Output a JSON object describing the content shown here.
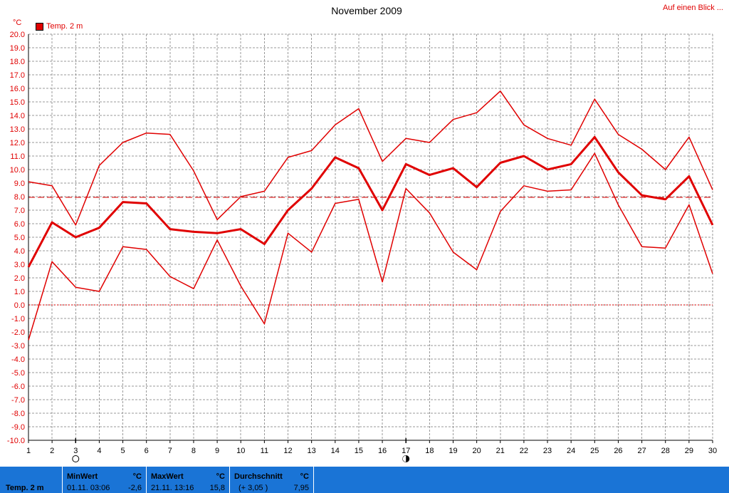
{
  "header": {
    "title": "November 2009",
    "link_label": "Auf einen Blick ...",
    "unit_label": "°C",
    "legend_label": "Temp. 2 m"
  },
  "colors": {
    "series": "#e00000",
    "grid": "#9a9a9a",
    "footer": "#1a74d6"
  },
  "chart_data": {
    "type": "line",
    "title": "November 2009",
    "ylabel": "°C",
    "x": [
      1,
      2,
      3,
      4,
      5,
      6,
      7,
      8,
      9,
      10,
      11,
      12,
      13,
      14,
      15,
      16,
      17,
      18,
      19,
      20,
      21,
      22,
      23,
      24,
      25,
      26,
      27,
      28,
      29,
      30
    ],
    "ylim": [
      -10,
      20
    ],
    "ytick_step": 1,
    "yticks": [
      "20.0",
      "19.0",
      "18.0",
      "17.0",
      "16.0",
      "15.0",
      "14.0",
      "13.0",
      "12.0",
      "11.0",
      "10.0",
      "9.0",
      "8.0",
      "7.0",
      "6.0",
      "5.0",
      "4.0",
      "3.0",
      "2.0",
      "1.0",
      "0.0",
      "-1.0",
      "-2.0",
      "-3.0",
      "-4.0",
      "-5.0",
      "-6.0",
      "-7.0",
      "-8.0",
      "-9.0",
      "-10.0"
    ],
    "grid": true,
    "legend": "top-left",
    "series": [
      {
        "name": "Temp. 2 m",
        "role": "max",
        "values": [
          9.1,
          8.8,
          5.9,
          10.3,
          12.0,
          12.7,
          12.6,
          9.9,
          6.3,
          8.0,
          8.4,
          10.9,
          11.4,
          13.3,
          14.5,
          10.6,
          12.3,
          12.0,
          13.7,
          14.2,
          15.8,
          13.3,
          12.3,
          11.8,
          15.2,
          12.6,
          11.5,
          10.0,
          12.4,
          8.5
        ]
      },
      {
        "name": "Temp. 2 m",
        "role": "mean",
        "values": [
          2.8,
          6.1,
          5.0,
          5.7,
          7.6,
          7.5,
          5.6,
          5.4,
          5.3,
          5.6,
          4.5,
          7.0,
          8.6,
          10.9,
          10.1,
          7.0,
          10.4,
          9.6,
          10.1,
          8.7,
          10.5,
          11.0,
          10.0,
          10.4,
          12.4,
          9.8,
          8.1,
          7.8,
          9.5,
          5.9
        ]
      },
      {
        "name": "Temp. 2 m",
        "role": "min",
        "values": [
          -2.6,
          3.2,
          1.3,
          1.0,
          4.3,
          4.1,
          2.1,
          1.2,
          4.8,
          1.4,
          -1.4,
          5.3,
          3.9,
          7.5,
          7.8,
          1.7,
          8.6,
          6.8,
          3.9,
          2.6,
          6.9,
          8.8,
          8.4,
          8.5,
          11.2,
          7.4,
          4.3,
          4.2,
          7.4,
          2.3
        ]
      }
    ],
    "average_line": 7.95,
    "zero_line": 0.0,
    "markers": [
      {
        "day": 3,
        "symbol": "full-moon"
      },
      {
        "day": 17,
        "symbol": "new-moon"
      }
    ]
  },
  "footer": {
    "series_label": "Temp. 2 m",
    "min": {
      "label": "MinWert",
      "unit": "°C",
      "when": "01.11.  03:06",
      "value": "-2,6"
    },
    "max": {
      "label": "MaxWert",
      "unit": "°C",
      "when": "21.11.  13:16",
      "value": "15,8"
    },
    "avg": {
      "label": "Durchschnitt",
      "unit": "°C",
      "delta": "(+ 3,05 )",
      "value": "7,95"
    }
  }
}
